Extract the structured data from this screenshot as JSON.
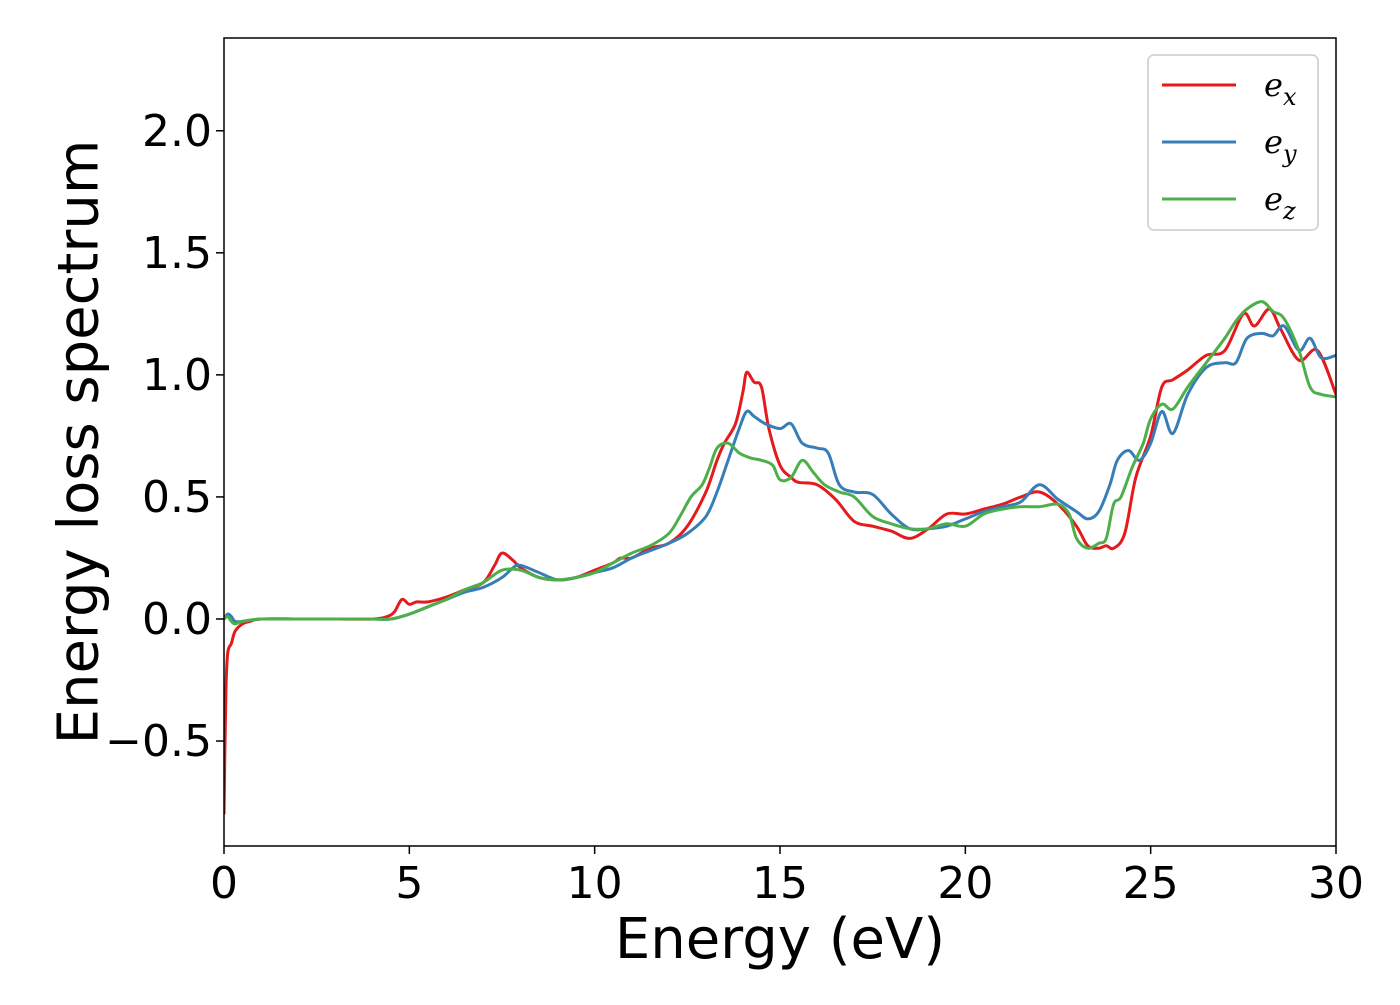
{
  "chart_data": {
    "type": "line",
    "xlabel": "Energy (eV)",
    "ylabel": "Energy loss spectrum",
    "xlim": [
      0,
      30
    ],
    "ylim": [
      -0.93,
      2.38
    ],
    "xticks": [
      "0",
      "5",
      "10",
      "15",
      "20",
      "25",
      "30"
    ],
    "yticks": [
      "−0.5",
      "0.0",
      "0.5",
      "1.0",
      "1.5",
      "2.0"
    ],
    "grid": false,
    "legend_position": "top-right",
    "series": [
      {
        "name": "e",
        "subscript": "x",
        "color": "#e41a1c",
        "x": [
          0.0,
          0.05,
          0.1,
          0.2,
          0.3,
          0.5,
          0.7,
          1.0,
          2.0,
          3.0,
          4.0,
          4.4,
          4.6,
          4.8,
          5.0,
          5.2,
          5.5,
          6.0,
          6.5,
          7.0,
          7.3,
          7.5,
          7.8,
          8.0,
          8.5,
          9.0,
          9.5,
          10.0,
          10.5,
          10.7,
          11.0,
          11.5,
          12.0,
          12.5,
          13.0,
          13.3,
          13.5,
          13.8,
          14.0,
          14.1,
          14.3,
          14.5,
          14.7,
          15.0,
          15.3,
          15.5,
          16.0,
          16.5,
          17.0,
          17.5,
          18.0,
          18.5,
          19.0,
          19.5,
          20.0,
          20.5,
          21.0,
          21.5,
          22.0,
          22.5,
          23.0,
          23.3,
          23.6,
          23.8,
          24.0,
          24.3,
          24.6,
          25.0,
          25.3,
          25.6,
          26.0,
          26.5,
          27.0,
          27.5,
          27.8,
          28.2,
          28.5,
          29.0,
          29.5,
          30.0
        ],
        "y": [
          -0.8,
          -0.3,
          -0.14,
          -0.1,
          -0.05,
          -0.02,
          -0.01,
          0.0,
          0.0,
          0.0,
          0.0,
          0.01,
          0.03,
          0.08,
          0.06,
          0.07,
          0.07,
          0.09,
          0.12,
          0.15,
          0.22,
          0.27,
          0.24,
          0.21,
          0.17,
          0.16,
          0.17,
          0.2,
          0.23,
          0.25,
          0.25,
          0.29,
          0.31,
          0.38,
          0.52,
          0.65,
          0.72,
          0.8,
          0.93,
          1.01,
          0.97,
          0.95,
          0.78,
          0.63,
          0.58,
          0.56,
          0.55,
          0.49,
          0.4,
          0.38,
          0.36,
          0.33,
          0.37,
          0.43,
          0.43,
          0.45,
          0.47,
          0.5,
          0.52,
          0.47,
          0.38,
          0.3,
          0.29,
          0.3,
          0.29,
          0.35,
          0.58,
          0.75,
          0.95,
          0.98,
          1.02,
          1.08,
          1.1,
          1.25,
          1.2,
          1.27,
          1.19,
          1.06,
          1.1,
          0.92
        ]
      },
      {
        "name": "e",
        "subscript": "y",
        "color": "#377eb8",
        "x": [
          0.0,
          0.1,
          0.2,
          0.3,
          0.5,
          1.0,
          2.0,
          3.0,
          4.0,
          4.5,
          5.0,
          5.5,
          6.0,
          6.5,
          7.0,
          7.5,
          7.8,
          8.0,
          8.5,
          9.0,
          9.5,
          10.0,
          10.5,
          11.0,
          11.5,
          12.0,
          12.5,
          13.0,
          13.3,
          13.6,
          13.9,
          14.1,
          14.3,
          14.6,
          15.0,
          15.3,
          15.6,
          16.0,
          16.3,
          16.6,
          17.0,
          17.5,
          18.0,
          18.5,
          19.0,
          19.5,
          20.0,
          20.5,
          21.0,
          21.5,
          22.0,
          22.5,
          23.0,
          23.3,
          23.6,
          23.9,
          24.1,
          24.4,
          24.7,
          25.0,
          25.3,
          25.6,
          26.0,
          26.5,
          27.0,
          27.3,
          27.6,
          28.0,
          28.3,
          28.6,
          29.0,
          29.3,
          29.6,
          30.0
        ],
        "y": [
          0.0,
          0.02,
          0.01,
          -0.01,
          -0.01,
          0.0,
          0.0,
          0.0,
          0.0,
          0.0,
          0.02,
          0.05,
          0.08,
          0.11,
          0.13,
          0.17,
          0.21,
          0.22,
          0.19,
          0.16,
          0.17,
          0.19,
          0.21,
          0.25,
          0.28,
          0.31,
          0.35,
          0.42,
          0.52,
          0.65,
          0.78,
          0.85,
          0.83,
          0.8,
          0.78,
          0.8,
          0.72,
          0.7,
          0.68,
          0.55,
          0.52,
          0.51,
          0.43,
          0.37,
          0.37,
          0.38,
          0.41,
          0.44,
          0.46,
          0.48,
          0.55,
          0.49,
          0.44,
          0.41,
          0.44,
          0.55,
          0.65,
          0.69,
          0.65,
          0.72,
          0.85,
          0.76,
          0.92,
          1.03,
          1.05,
          1.05,
          1.15,
          1.17,
          1.16,
          1.2,
          1.1,
          1.15,
          1.07,
          1.08
        ]
      },
      {
        "name": "e",
        "subscript": "z",
        "color": "#4daf4a",
        "x": [
          0.0,
          0.1,
          0.2,
          0.3,
          0.5,
          1.0,
          2.0,
          3.0,
          4.0,
          4.5,
          5.0,
          5.5,
          6.0,
          6.5,
          7.0,
          7.5,
          8.0,
          8.5,
          9.0,
          9.5,
          10.0,
          10.5,
          11.0,
          11.5,
          12.0,
          12.3,
          12.6,
          12.9,
          13.1,
          13.3,
          13.6,
          13.9,
          14.2,
          14.5,
          14.8,
          15.0,
          15.3,
          15.6,
          15.9,
          16.2,
          16.6,
          17.0,
          17.5,
          18.0,
          18.5,
          19.0,
          19.5,
          20.0,
          20.5,
          21.0,
          21.5,
          22.0,
          22.5,
          22.8,
          23.0,
          23.3,
          23.6,
          23.8,
          24.0,
          24.2,
          24.5,
          24.8,
          25.0,
          25.3,
          25.6,
          26.0,
          26.5,
          27.0,
          27.3,
          27.6,
          28.0,
          28.3,
          28.6,
          29.0,
          29.3,
          29.6,
          30.0
        ],
        "y": [
          0.0,
          0.01,
          -0.01,
          -0.02,
          -0.01,
          0.0,
          0.0,
          0.0,
          0.0,
          0.0,
          0.02,
          0.05,
          0.08,
          0.12,
          0.15,
          0.2,
          0.2,
          0.17,
          0.16,
          0.17,
          0.19,
          0.23,
          0.27,
          0.3,
          0.35,
          0.42,
          0.5,
          0.55,
          0.62,
          0.7,
          0.72,
          0.68,
          0.66,
          0.65,
          0.63,
          0.57,
          0.58,
          0.65,
          0.6,
          0.55,
          0.52,
          0.5,
          0.42,
          0.39,
          0.37,
          0.37,
          0.39,
          0.38,
          0.43,
          0.45,
          0.46,
          0.46,
          0.47,
          0.43,
          0.33,
          0.29,
          0.31,
          0.33,
          0.47,
          0.5,
          0.62,
          0.72,
          0.82,
          0.88,
          0.86,
          0.95,
          1.05,
          1.15,
          1.22,
          1.27,
          1.3,
          1.26,
          1.23,
          1.1,
          0.95,
          0.92,
          0.91
        ]
      }
    ]
  }
}
